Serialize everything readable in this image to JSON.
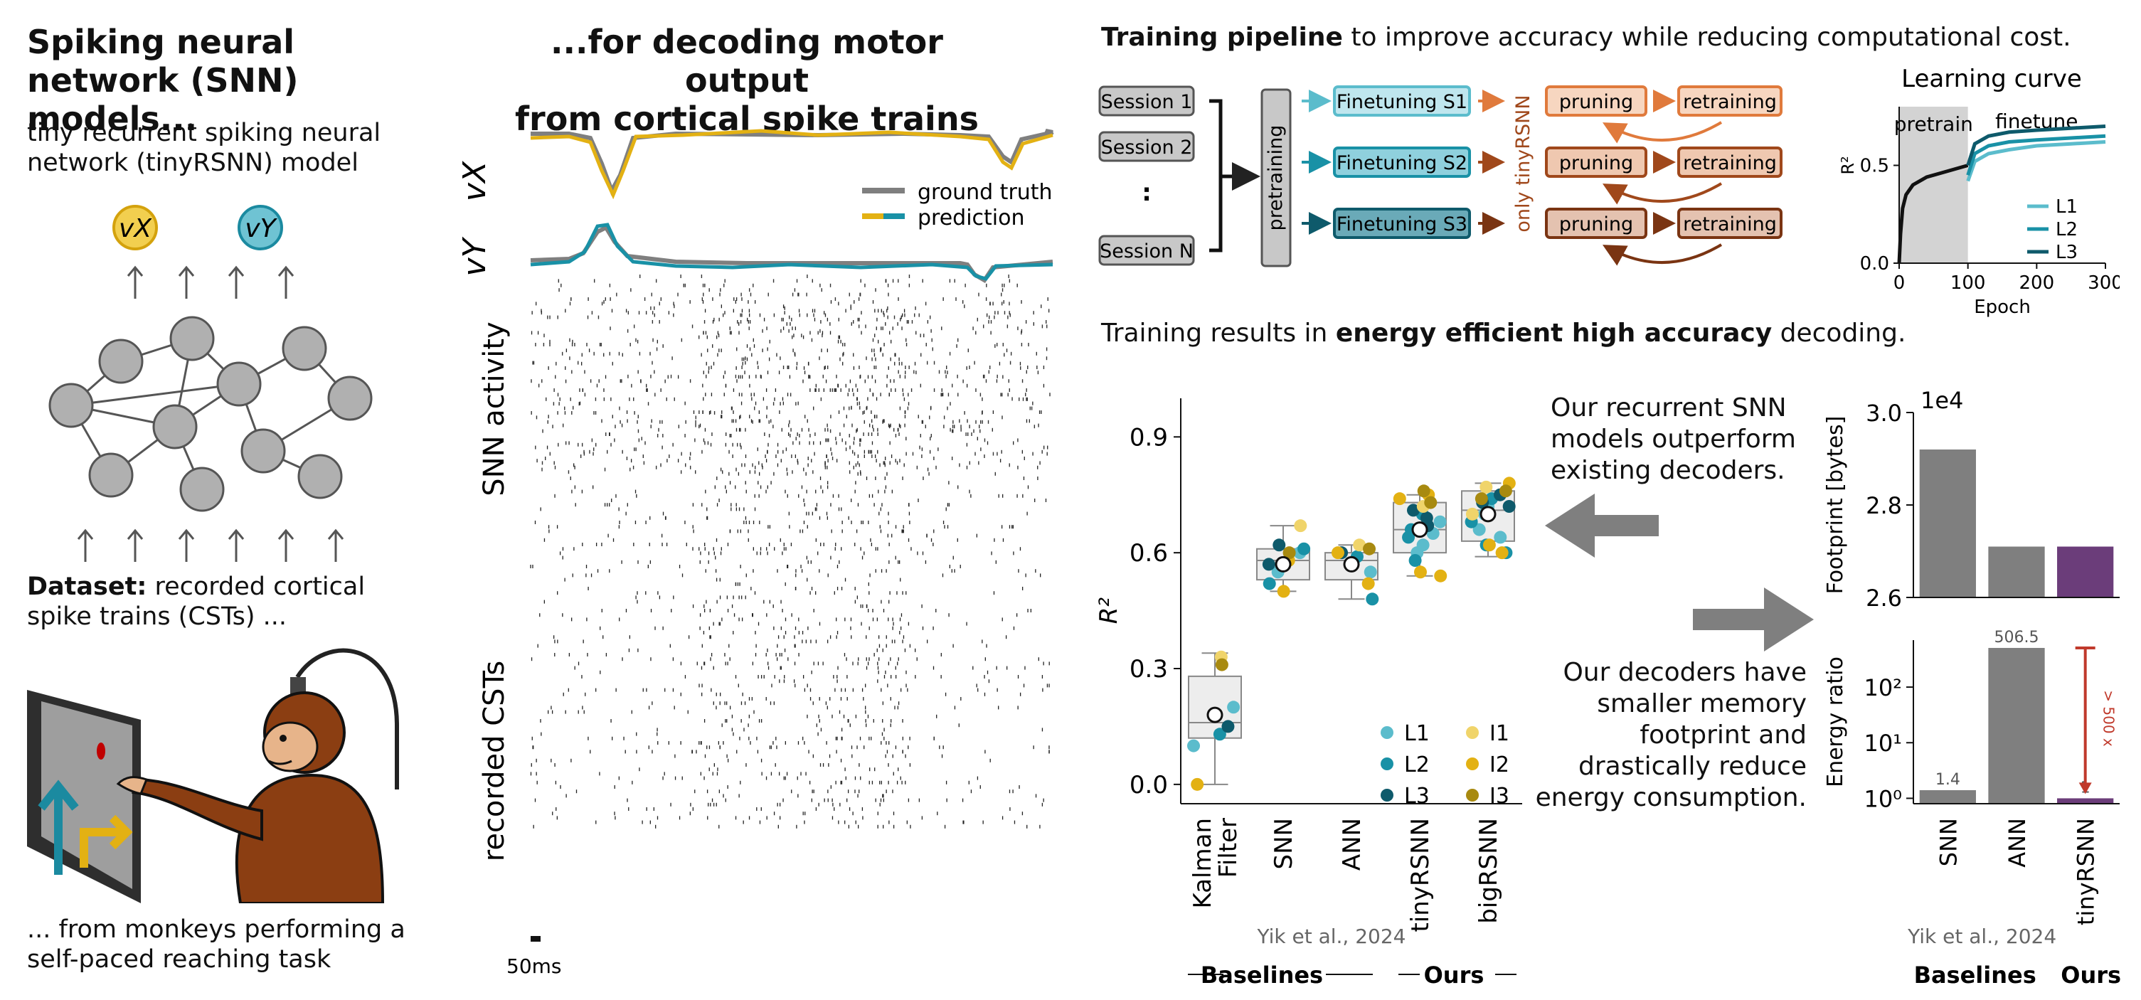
{
  "left": {
    "title": "Spiking neural network (SNN) models...",
    "subtitle": "tiny recurrent spiking neural network (tinyRSNN) model",
    "output_labels": [
      "vX",
      "vY"
    ],
    "dataset_bold": "Dataset:",
    "dataset_text": "recorded cortical spike trains (CSTs) ...",
    "monkey_caption": "... from monkeys performing a self-paced reaching task"
  },
  "middle": {
    "title_line1": "...for decoding motor output",
    "title_line2": "from cortical spike trains",
    "vx_label": "vX",
    "vy_label": "vY",
    "legend_ground_truth": "ground truth",
    "legend_prediction": "prediction",
    "snn_activity_label": "SNN activity",
    "csts_label": "recorded CSTs",
    "scale_label": "50ms"
  },
  "pipeline": {
    "heading_bold": "Training pipeline",
    "heading_rest": " to improve accuracy while reducing computational cost.",
    "sessions": [
      "Session 1",
      "Session 2",
      ":",
      "Session N"
    ],
    "pretraining": "pretraining",
    "finetuning": [
      "Finetuning S1",
      "Finetuning S2",
      "Finetuning S3"
    ],
    "only_label": "only tinyRSNN",
    "pruning": "pruning",
    "retraining": "retraining"
  },
  "learning_curve": {
    "title": "Learning curve",
    "ylabel": "R²",
    "xlabel": "Epoch",
    "pretrain_label": "pretrain",
    "finetune_label": "finetune",
    "xticks": [
      "0",
      "100",
      "200",
      "300"
    ],
    "yticks": [
      "0.0",
      "0.5"
    ],
    "legend": [
      "L1",
      "L2",
      "L3"
    ]
  },
  "results": {
    "heading_pre": "Training results in ",
    "heading_bold": "energy efficient high accuracy",
    "heading_post": " decoding.",
    "text1": "Our recurrent SNN models outperform existing decoders.",
    "text2": "Our decoders have smaller memory footprint and drastically reduce energy consumption."
  },
  "boxplot": {
    "ylabel": "R²",
    "yticks": [
      "0.0",
      "0.3",
      "0.6",
      "0.9"
    ],
    "categories": [
      "Kalman Filter",
      "SNN",
      "ANN",
      "tinyRSNN",
      "bigRSNN"
    ],
    "yik_label": "Yik et al., 2024",
    "group_baselines": "Baselines",
    "group_ours": "Ours",
    "legend": [
      "L1",
      "L2",
      "L3",
      "I1",
      "I2",
      "I3"
    ]
  },
  "footprint": {
    "ylabel": "Footprint [bytes]",
    "exponent": "1e4",
    "yticks": [
      "2.6",
      "2.8",
      "3.0"
    ]
  },
  "energy": {
    "ylabel": "Energy ratio",
    "yticks": [
      "10⁰",
      "10¹",
      "10²"
    ],
    "annot_label": "> 500 x",
    "categories": [
      "SNN",
      "ANN",
      "tinyRSNN"
    ],
    "yik_label": "Yik et al., 2024",
    "group_baselines": "Baselines",
    "group_ours": "Ours"
  },
  "colors": {
    "L1": "#5bbccc",
    "L2": "#1991a6",
    "L3": "#0e5a6b",
    "I1": "#f0d46a",
    "I2": "#e3b113",
    "I3": "#a88a10",
    "gray_bar": "#7f7f7f",
    "purple_bar": "#6b3d7a",
    "orange": "#e07a3c",
    "brown": "#a0481b",
    "yellow_pred": "#e3b113",
    "teal_pred": "#1991a6"
  },
  "chart_data": [
    {
      "type": "line",
      "title": "Learning curve",
      "xlabel": "Epoch",
      "ylabel": "R²",
      "xlim": [
        0,
        300
      ],
      "ylim": [
        0,
        0.8
      ],
      "series": [
        {
          "name": "pretrain",
          "x": [
            0,
            2,
            5,
            10,
            20,
            40,
            60,
            80,
            100
          ],
          "y": [
            0.0,
            0.15,
            0.28,
            0.35,
            0.4,
            0.44,
            0.46,
            0.48,
            0.5
          ]
        },
        {
          "name": "L1",
          "x": [
            100,
            110,
            130,
            160,
            200,
            250,
            300
          ],
          "y": [
            0.42,
            0.52,
            0.56,
            0.58,
            0.6,
            0.61,
            0.62
          ]
        },
        {
          "name": "L2",
          "x": [
            100,
            110,
            130,
            160,
            200,
            250,
            300
          ],
          "y": [
            0.45,
            0.56,
            0.6,
            0.62,
            0.63,
            0.64,
            0.65
          ]
        },
        {
          "name": "L3",
          "x": [
            100,
            110,
            130,
            160,
            200,
            250,
            300
          ],
          "y": [
            0.5,
            0.61,
            0.65,
            0.67,
            0.68,
            0.69,
            0.7
          ]
        }
      ]
    },
    {
      "type": "box",
      "ylabel": "R²",
      "ylim": [
        -0.05,
        1.0
      ],
      "categories": [
        "Kalman Filter",
        "SNN",
        "ANN",
        "tinyRSNN",
        "bigRSNN"
      ],
      "boxes": [
        {
          "q1": 0.12,
          "median": 0.16,
          "q3": 0.28,
          "whislo": 0.0,
          "whishi": 0.34,
          "mean": 0.18
        },
        {
          "q1": 0.53,
          "median": 0.58,
          "q3": 0.61,
          "whislo": 0.5,
          "whishi": 0.67,
          "mean": 0.57
        },
        {
          "q1": 0.53,
          "median": 0.58,
          "q3": 0.6,
          "whislo": 0.48,
          "whishi": 0.62,
          "mean": 0.57
        },
        {
          "q1": 0.6,
          "median": 0.66,
          "q3": 0.73,
          "whislo": 0.54,
          "whishi": 0.75,
          "mean": 0.66
        },
        {
          "q1": 0.63,
          "median": 0.71,
          "q3": 0.76,
          "whislo": 0.59,
          "whishi": 0.78,
          "mean": 0.7
        }
      ],
      "points": {
        "Kalman Filter": {
          "L1": [
            0.1,
            0.2
          ],
          "L2": [
            0.13
          ],
          "L3": [
            0.15
          ],
          "I1": [
            0.33
          ],
          "I2": [
            0.0
          ],
          "I3": [
            0.31
          ]
        },
        "SNN": {
          "L1": [
            0.55,
            0.6
          ],
          "L2": [
            0.52,
            0.61
          ],
          "L3": [
            0.57,
            0.62
          ],
          "I1": [
            0.67
          ],
          "I2": [
            0.5,
            0.58
          ],
          "I3": [
            0.6
          ]
        },
        "ANN": {
          "L1": [
            0.55
          ],
          "L2": [
            0.48,
            0.59
          ],
          "L3": [
            0.6
          ],
          "I1": [
            0.62
          ],
          "I2": [
            0.52,
            0.6
          ],
          "I3": [
            0.61
          ]
        },
        "tinyRSNN": {
          "L1": [
            0.62,
            0.65,
            0.6,
            0.68
          ],
          "L2": [
            0.64,
            0.66,
            0.7,
            0.58
          ],
          "L3": [
            0.69,
            0.71,
            0.67
          ],
          "I1": [
            0.72
          ],
          "I2": [
            0.54,
            0.55,
            0.74,
            0.75
          ],
          "I3": [
            0.73,
            0.76
          ]
        },
        "bigRSNN": {
          "L1": [
            0.66,
            0.7,
            0.72,
            0.64
          ],
          "L2": [
            0.68,
            0.62,
            0.74,
            0.6
          ],
          "L3": [
            0.72,
            0.75,
            0.73
          ],
          "I1": [
            0.7,
            0.77
          ],
          "I2": [
            0.6,
            0.62,
            0.78
          ],
          "I3": [
            0.76,
            0.74
          ]
        }
      }
    },
    {
      "type": "bar",
      "ylabel": "Footprint [bytes]",
      "exponent": "1e4",
      "categories": [
        "SNN",
        "ANN",
        "tinyRSNN"
      ],
      "values": [
        2.92,
        2.71,
        2.71
      ],
      "ylim": [
        2.6,
        3.0
      ]
    },
    {
      "type": "bar",
      "ylabel": "Energy ratio",
      "yscale": "log",
      "categories": [
        "SNN",
        "ANN",
        "tinyRSNN"
      ],
      "values": [
        1.4,
        506.5,
        1
      ],
      "data_labels": [
        "1.4",
        "506.5",
        "1"
      ],
      "ylim": [
        0.8,
        700
      ]
    }
  ]
}
